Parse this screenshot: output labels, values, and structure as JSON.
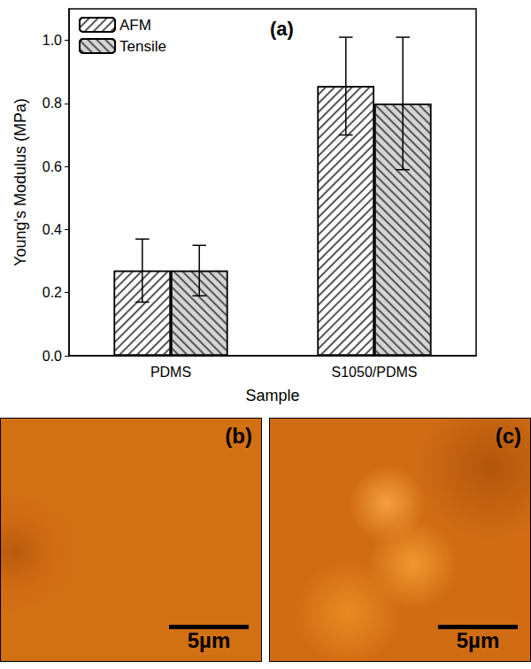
{
  "chart_data": {
    "type": "bar",
    "title": "(a)",
    "categories": [
      "PDMS",
      "S1050/PDMS"
    ],
    "series": [
      {
        "name": "AFM",
        "color": "#ffffff",
        "values": [
          0.27,
          0.855
        ],
        "errors": [
          0.1,
          0.155
        ]
      },
      {
        "name": "Tensile",
        "color": "#d4d4d4",
        "values": [
          0.27,
          0.8
        ],
        "errors": [
          0.08,
          0.21
        ]
      }
    ],
    "x_label": "Sample",
    "y_label": "Young's Modulus (MPa)",
    "ylim": [
      0,
      1.1
    ],
    "yticks": [
      {
        "value": 0,
        "label": "0.0"
      },
      0.2,
      0.4,
      0.6,
      0.8,
      {
        "value": 1,
        "label": "1.0"
      }
    ],
    "grid": false,
    "legend": "upper left"
  },
  "images": [
    {
      "label": "(b)",
      "scale_bar": "5µm"
    },
    {
      "label": "(c)",
      "scale_bar": "5µm"
    }
  ]
}
